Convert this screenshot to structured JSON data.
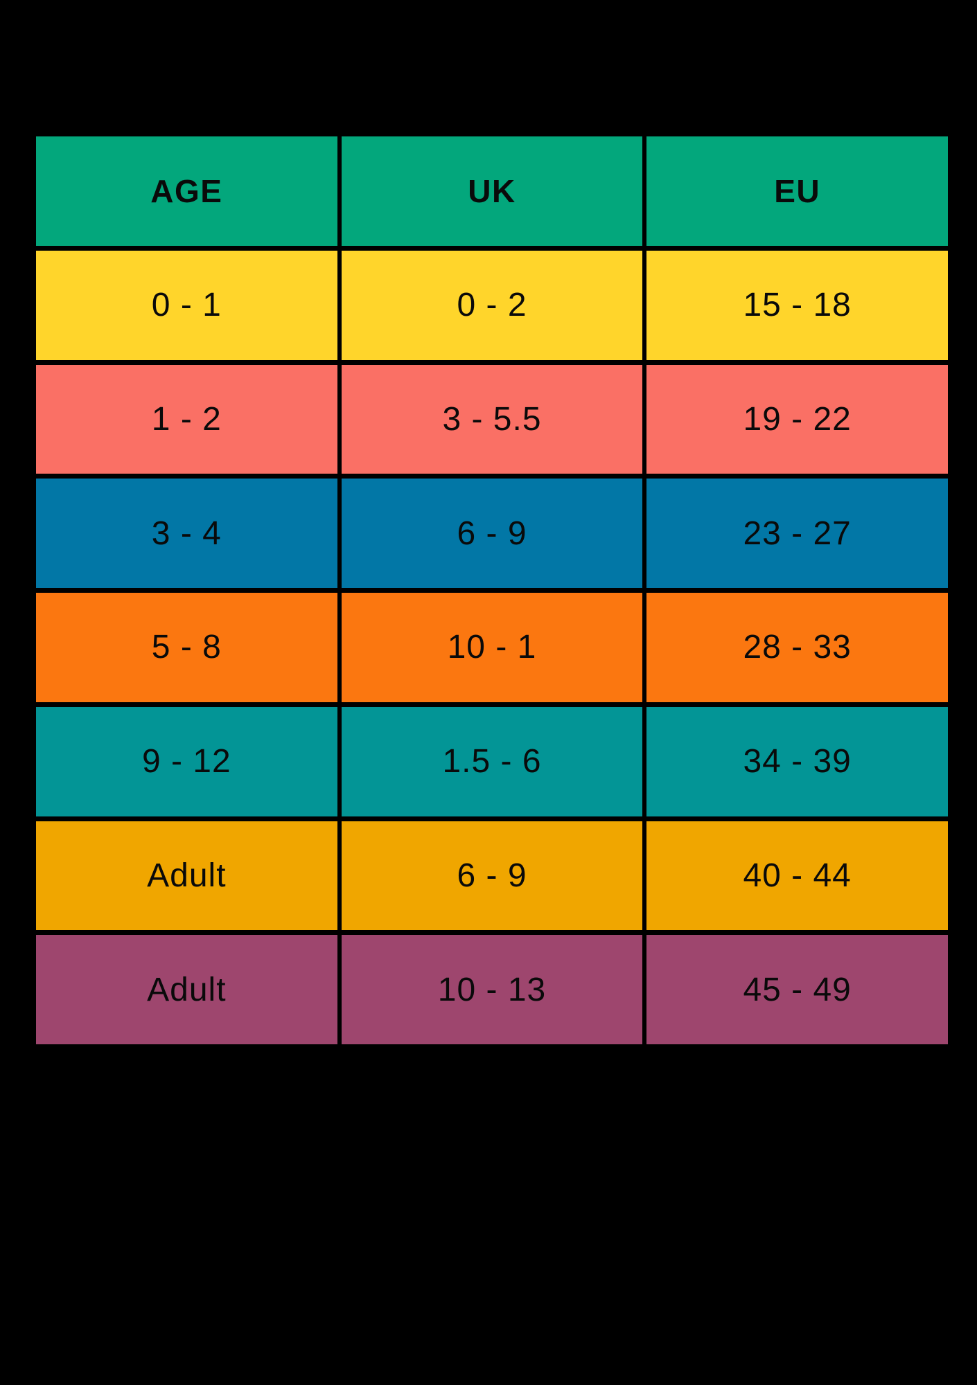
{
  "page": {
    "background": "#000000",
    "text_color": "#0a0a0a"
  },
  "chart_data": {
    "type": "table",
    "title": "",
    "columns": [
      "AGE",
      "UK",
      "EU"
    ],
    "header_bg": "#03A77C",
    "rows": [
      {
        "bg": "#FFD52B",
        "cells": [
          "0 - 1",
          "0 - 2",
          "15 - 18"
        ]
      },
      {
        "bg": "#FA7065",
        "cells": [
          "1 - 2",
          "3 - 5.5",
          "19 - 22"
        ]
      },
      {
        "bg": "#0277A6",
        "cells": [
          "3 - 4",
          "6 - 9",
          "23 - 27"
        ]
      },
      {
        "bg": "#FB7710",
        "cells": [
          "5 - 8",
          "10 - 1",
          "28 - 33"
        ]
      },
      {
        "bg": "#039596",
        "cells": [
          "9 - 12",
          "1.5 - 6",
          "34 - 39"
        ]
      },
      {
        "bg": "#F0A600",
        "cells": [
          "Adult",
          "6 - 9",
          "40 - 44"
        ]
      },
      {
        "bg": "#9E466E",
        "cells": [
          "Adult",
          "10 - 13",
          "45 - 49"
        ]
      }
    ]
  }
}
